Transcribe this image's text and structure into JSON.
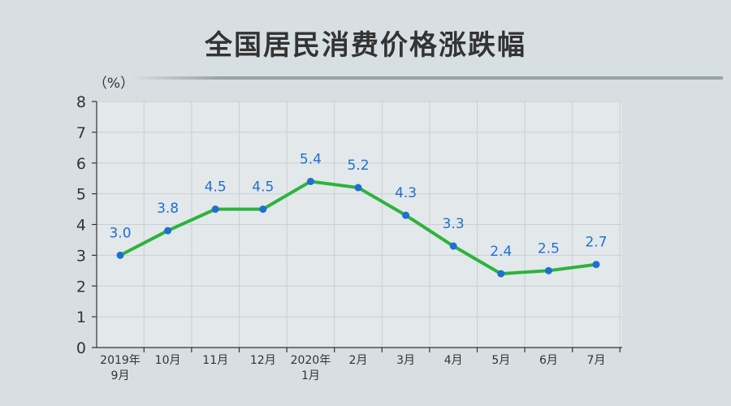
{
  "title": "全国居民消费价格涨跌幅",
  "chart_data": {
    "type": "line",
    "ylabel": "（%）",
    "ylim": [
      0,
      8
    ],
    "yticks": [
      "0",
      "1",
      "2",
      "3",
      "4",
      "5",
      "6",
      "7",
      "8"
    ],
    "categories": [
      [
        "2019年",
        "9月"
      ],
      [
        "10月"
      ],
      [
        "11月"
      ],
      [
        "12月"
      ],
      [
        "2020年",
        "1月"
      ],
      [
        "2月"
      ],
      [
        "3月"
      ],
      [
        "4月"
      ],
      [
        "5月"
      ],
      [
        "6月"
      ],
      [
        "7月"
      ]
    ],
    "values": [
      3.0,
      3.8,
      4.5,
      4.5,
      5.4,
      5.2,
      4.3,
      3.3,
      2.4,
      2.5,
      2.7
    ],
    "value_labels": [
      "3.0",
      "3.8",
      "4.5",
      "4.5",
      "5.4",
      "5.2",
      "4.3",
      "3.3",
      "2.4",
      "2.5",
      "2.7"
    ],
    "grid": true,
    "colors": {
      "line": "#2db33d",
      "marker": "#1f6fd1",
      "label": "#1f6fd1",
      "plot_bg": "#e3e8ea",
      "grid": "#c9d0d3",
      "axis": "#333333"
    }
  }
}
